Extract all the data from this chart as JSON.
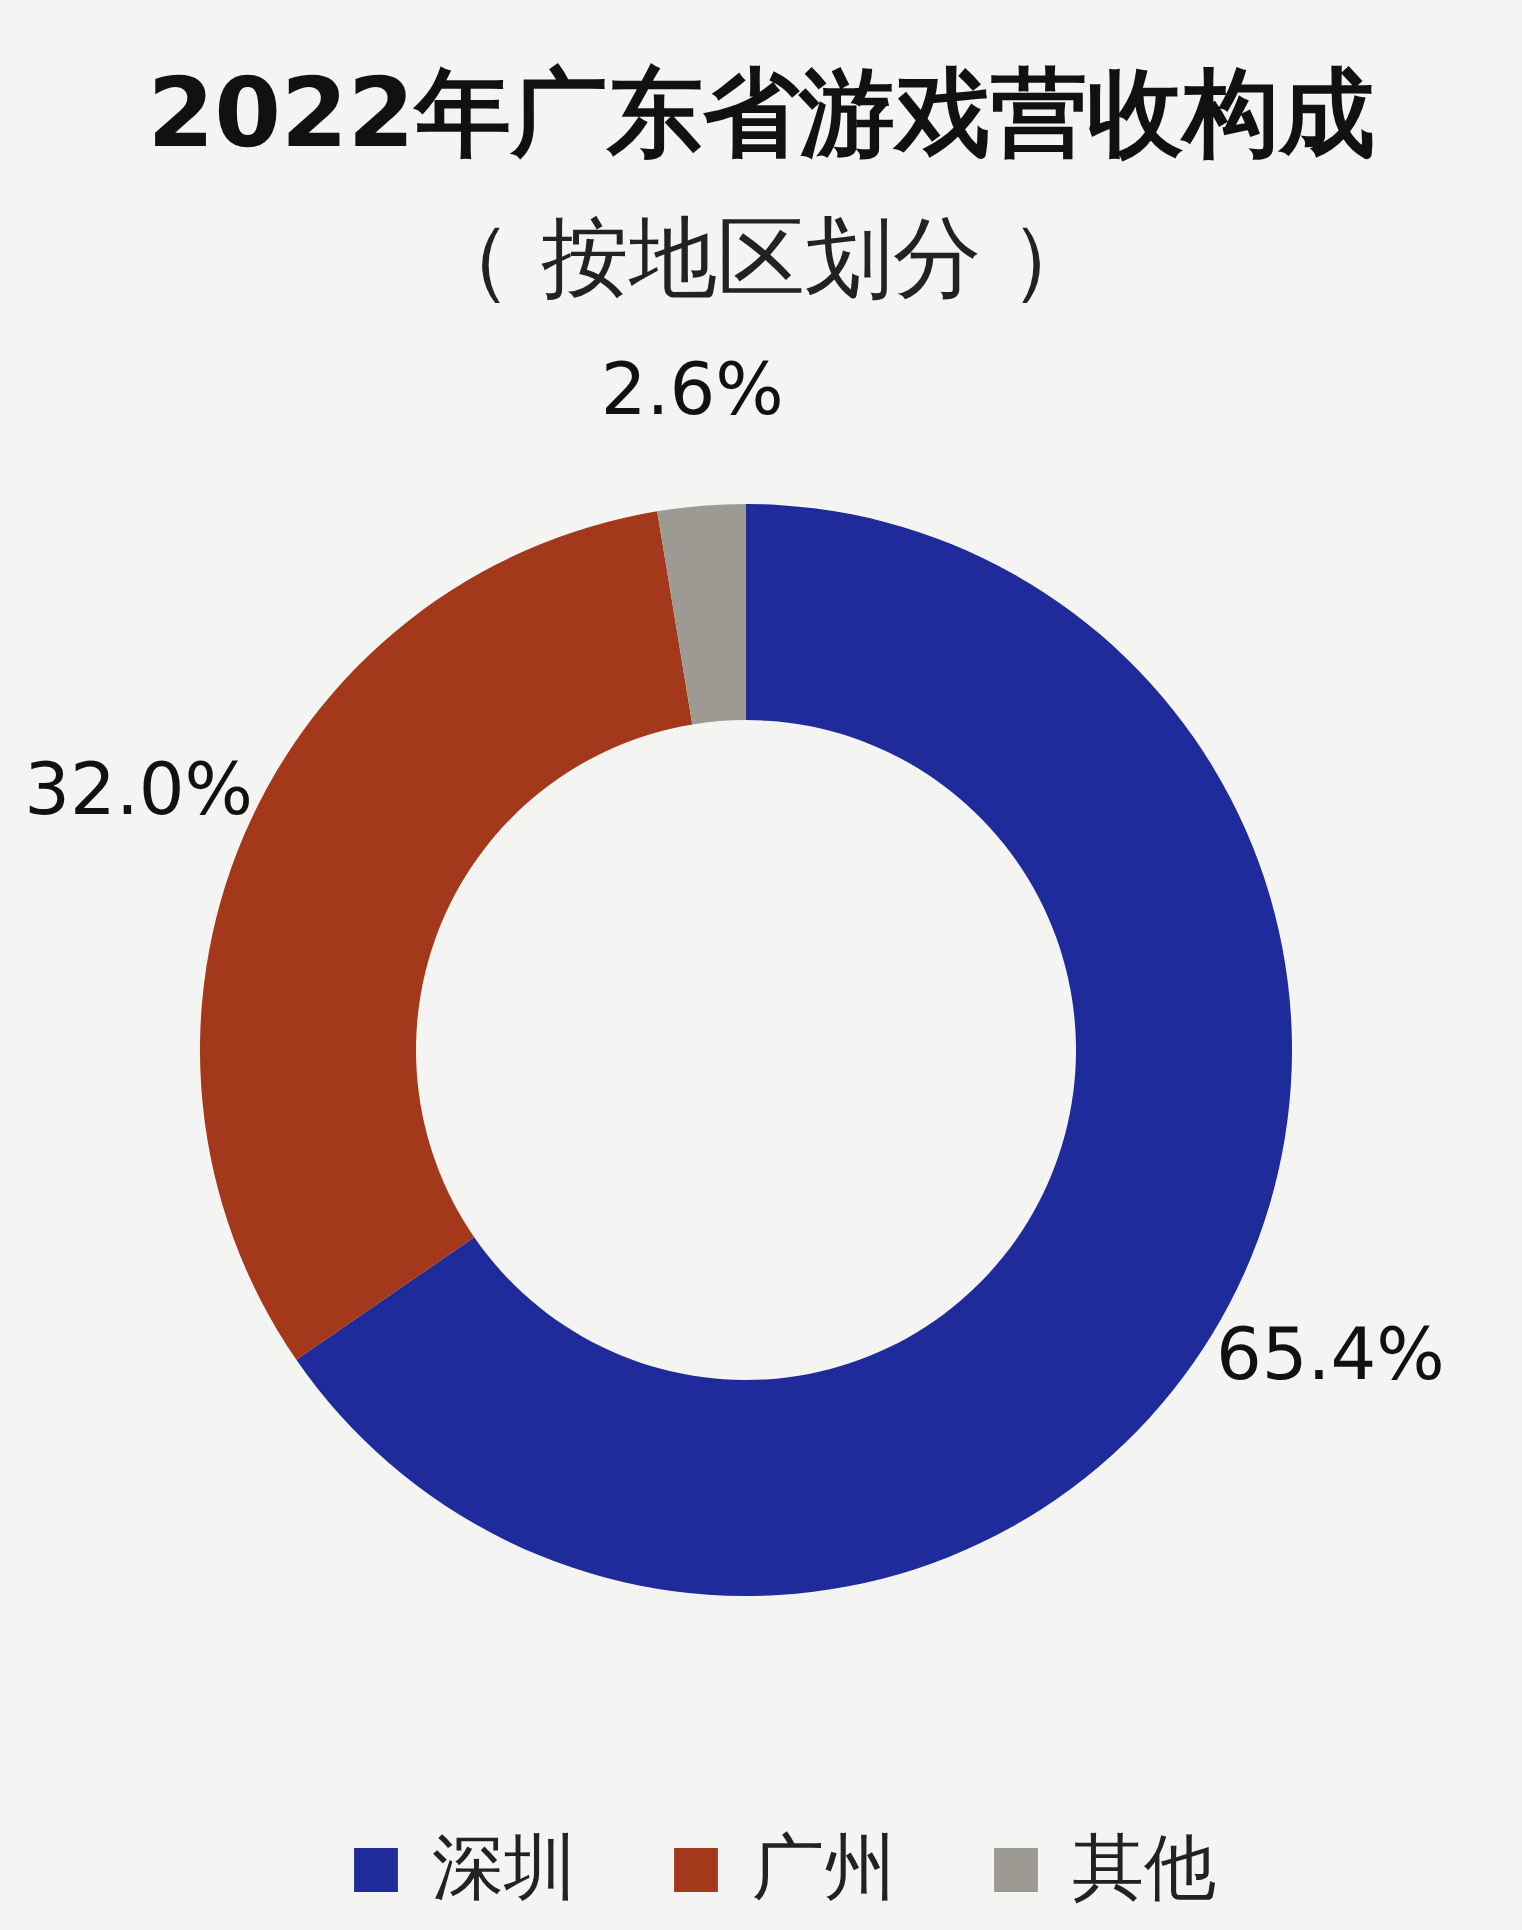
{
  "chart_data": {
    "type": "donut",
    "title": "2022年广东省游戏营收构成",
    "subtitle": "（ 按地区划分 ）",
    "categories": [
      "深圳",
      "广州",
      "其他"
    ],
    "values": [
      65.4,
      32.0,
      2.6
    ],
    "colors": [
      "#1f2a9b",
      "#a3391a",
      "#9d9a94"
    ],
    "value_labels": [
      "65.4%",
      "32.0%",
      "2.6%"
    ],
    "legend": "bottom"
  }
}
